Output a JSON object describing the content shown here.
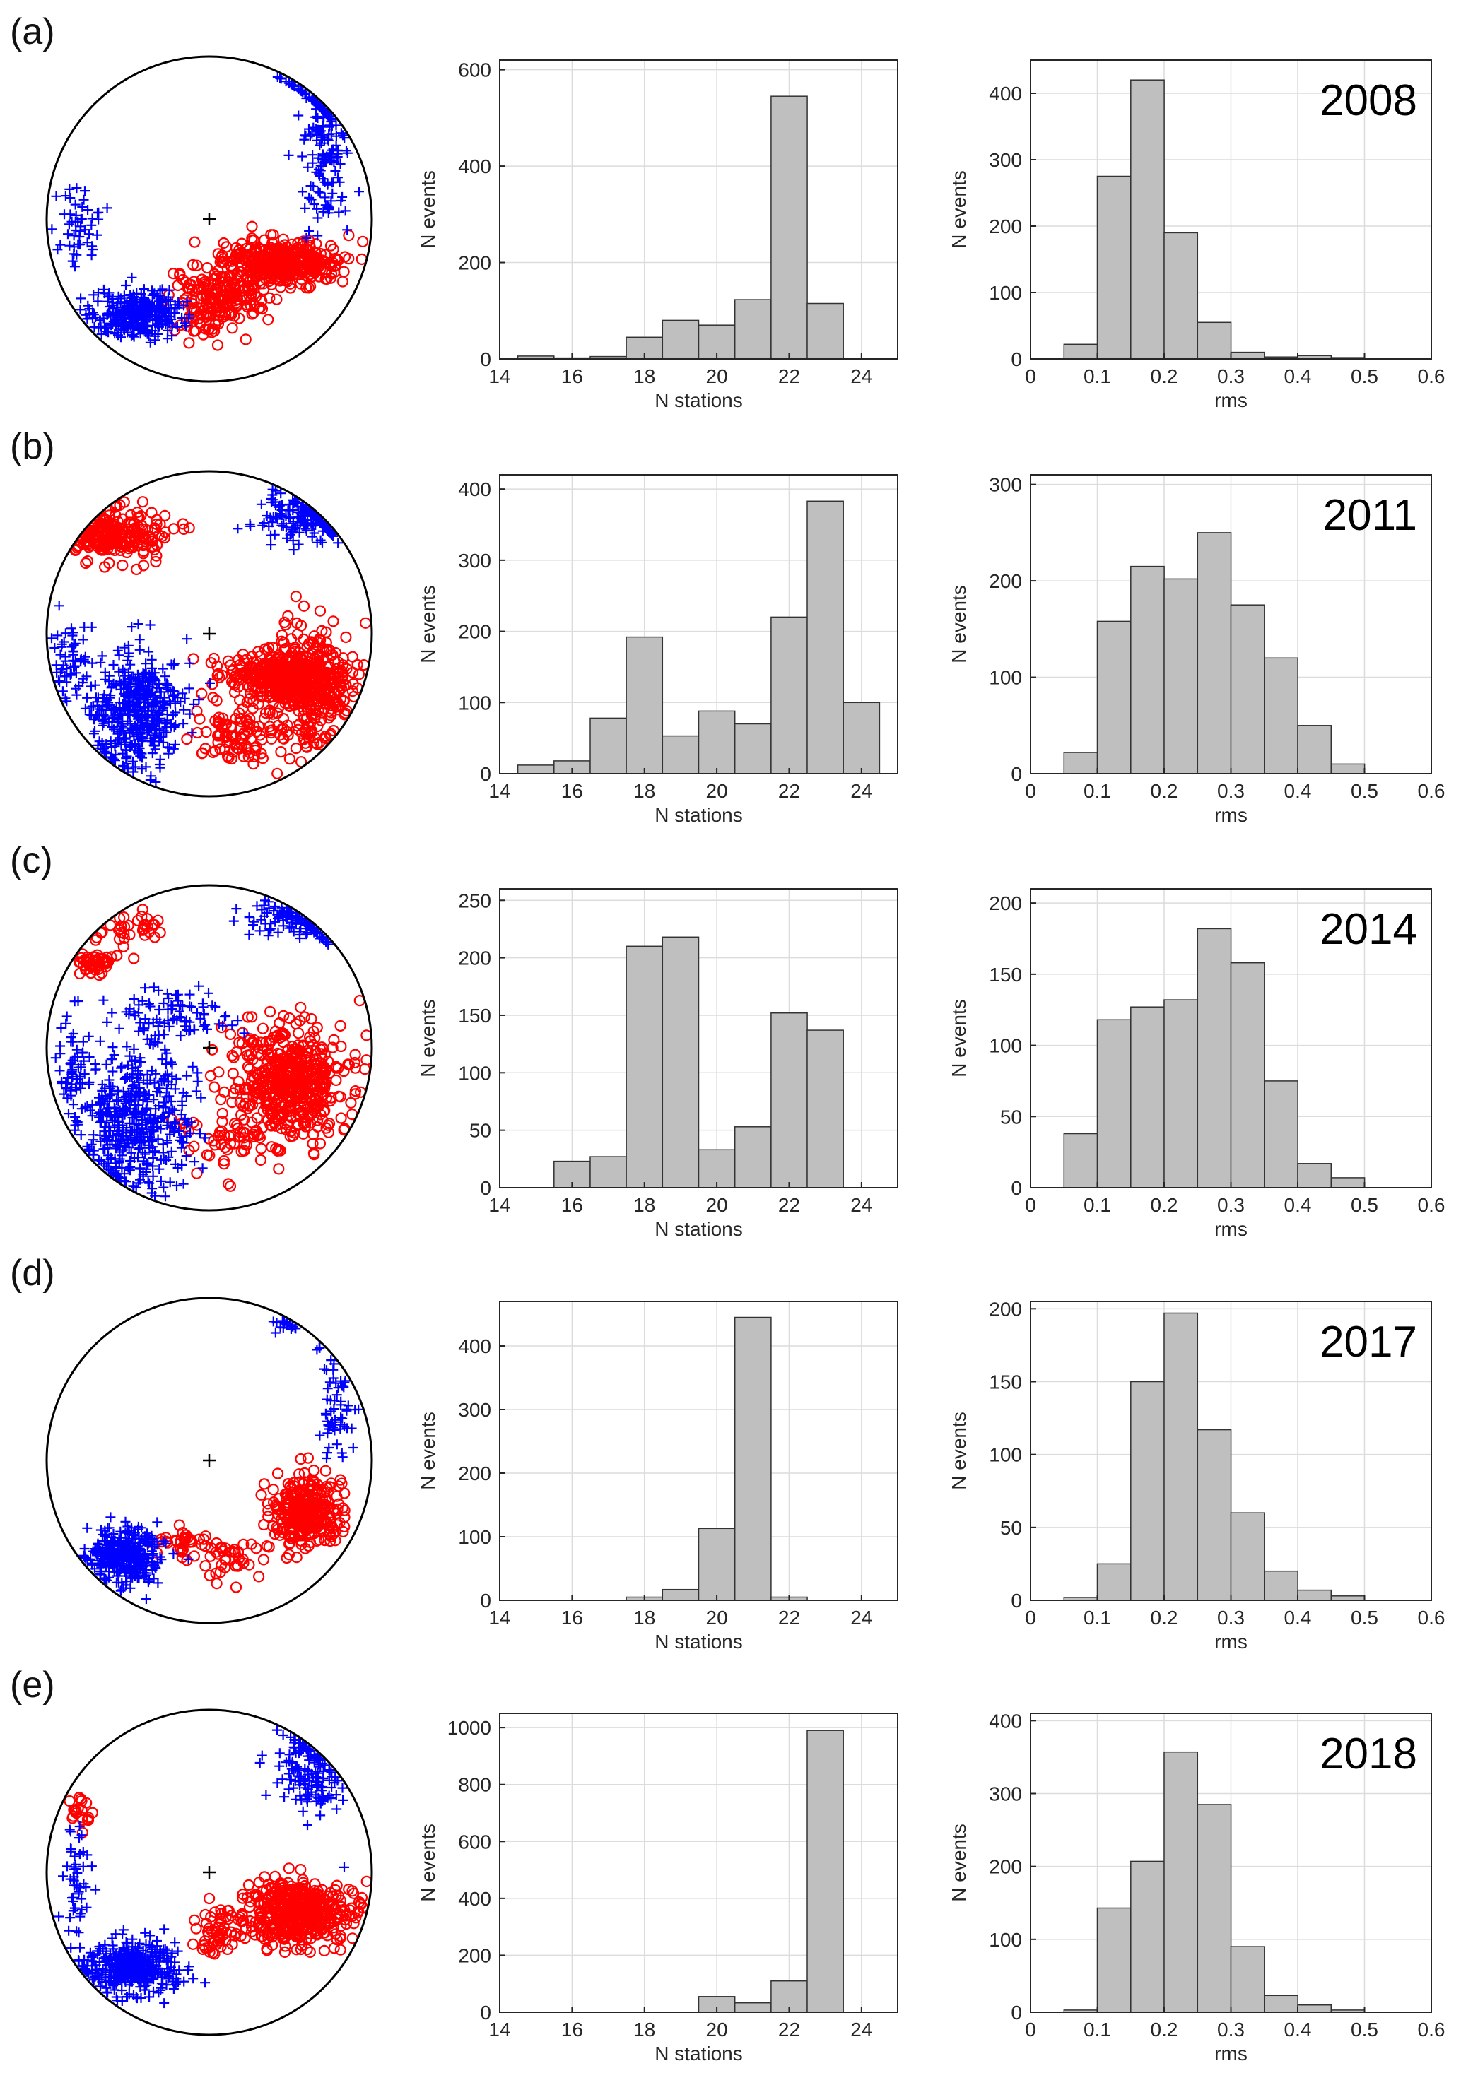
{
  "colors": {
    "bar_fill": "#bfbfbf",
    "bar_edge": "#333333",
    "grid": "#dcdcdc",
    "compression": "#ff0000",
    "dilatation": "#0000ff"
  },
  "rows": [
    {
      "panel": "(a)",
      "year": "2008",
      "stereonet": {
        "chart_data": {
          "type": "scatter",
          "series": [
            {
              "marker": "circle",
              "color": "#ff0000",
              "clusters": [
                {
                  "cx": 0.45,
                  "cy": 0.27,
                  "rx": 0.33,
                  "ry": 0.12,
                  "n": 380
                },
                {
                  "cx": 0.15,
                  "cy": 0.45,
                  "rx": 0.2,
                  "ry": 0.12,
                  "n": 90
                },
                {
                  "cx": -0.02,
                  "cy": 0.54,
                  "rx": 0.22,
                  "ry": 0.18,
                  "n": 110
                }
              ]
            },
            {
              "marker": "plus",
              "color": "#0000ff",
              "clusters": [
                {
                  "cx": -0.45,
                  "cy": 0.58,
                  "rx": 0.25,
                  "ry": 0.14,
                  "n": 320
                },
                {
                  "cx": 0.72,
                  "cy": -0.5,
                  "rx": 0.14,
                  "ry": 0.5,
                  "n": 170
                },
                {
                  "cx": -0.8,
                  "cy": 0.05,
                  "rx": 0.12,
                  "ry": 0.2,
                  "n": 50
                }
              ]
            }
          ]
        }
      },
      "hist_stations": {
        "chart_data": {
          "type": "bar",
          "bin_edges": [
            14.5,
            15.5,
            16.5,
            17.5,
            18.5,
            19.5,
            20.5,
            21.5,
            22.5,
            23.5,
            24.5
          ],
          "values": [
            6,
            2,
            5,
            45,
            80,
            70,
            123,
            545,
            115,
            0
          ],
          "xlim": [
            14,
            25
          ],
          "ylim": [
            0,
            620
          ],
          "xticks": [
            "14",
            "16",
            "18",
            "20",
            "22",
            "24"
          ],
          "yticks": [
            "0",
            "200",
            "400",
            "600"
          ],
          "xlabel": "N stations",
          "ylabel": "N events"
        }
      },
      "hist_rms": {
        "chart_data": {
          "type": "bar",
          "bin_edges": [
            0.0,
            0.05,
            0.1,
            0.15,
            0.2,
            0.25,
            0.3,
            0.35,
            0.4,
            0.45,
            0.5,
            0.55
          ],
          "values": [
            0,
            22,
            275,
            420,
            190,
            55,
            10,
            3,
            5,
            2,
            0
          ],
          "xlim": [
            0,
            0.6
          ],
          "ylim": [
            0,
            450
          ],
          "xticks": [
            "0",
            "0.1",
            "0.2",
            "0.3",
            "0.4",
            "0.5",
            "0.6"
          ],
          "yticks": [
            "0",
            "100",
            "200",
            "300",
            "400"
          ],
          "xlabel": "rms",
          "ylabel": "N events"
        }
      }
    },
    {
      "panel": "(b)",
      "year": "2011",
      "stereonet": {
        "chart_data": {
          "type": "scatter",
          "series": [
            {
              "marker": "circle",
              "color": "#ff0000",
              "clusters": [
                {
                  "cx": -0.58,
                  "cy": -0.62,
                  "rx": 0.28,
                  "ry": 0.14,
                  "n": 220
                },
                {
                  "cx": 0.45,
                  "cy": 0.27,
                  "rx": 0.3,
                  "ry": 0.14,
                  "n": 400
                },
                {
                  "cx": 0.65,
                  "cy": 0.35,
                  "rx": 0.2,
                  "ry": 0.35,
                  "n": 260
                },
                {
                  "cx": 0.2,
                  "cy": 0.62,
                  "rx": 0.25,
                  "ry": 0.16,
                  "n": 100
                }
              ]
            },
            {
              "marker": "plus",
              "color": "#0000ff",
              "clusters": [
                {
                  "cx": -0.45,
                  "cy": 0.48,
                  "rx": 0.25,
                  "ry": 0.32,
                  "n": 450
                },
                {
                  "cx": 0.58,
                  "cy": -0.72,
                  "rx": 0.25,
                  "ry": 0.15,
                  "n": 160
                },
                {
                  "cx": -0.85,
                  "cy": 0.15,
                  "rx": 0.1,
                  "ry": 0.25,
                  "n": 60
                }
              ]
            }
          ]
        }
      },
      "hist_stations": {
        "chart_data": {
          "type": "bar",
          "bin_edges": [
            14.5,
            15.5,
            16.5,
            17.5,
            18.5,
            19.5,
            20.5,
            21.5,
            22.5,
            23.5,
            24.5
          ],
          "values": [
            12,
            18,
            78,
            192,
            53,
            88,
            70,
            220,
            383,
            100
          ],
          "xlim": [
            14,
            25
          ],
          "ylim": [
            0,
            420
          ],
          "xticks": [
            "14",
            "16",
            "18",
            "20",
            "22",
            "24"
          ],
          "yticks": [
            "0",
            "100",
            "200",
            "300",
            "400"
          ],
          "xlabel": "N stations",
          "ylabel": "N events"
        }
      },
      "hist_rms": {
        "chart_data": {
          "type": "bar",
          "bin_edges": [
            0.0,
            0.05,
            0.1,
            0.15,
            0.2,
            0.25,
            0.3,
            0.35,
            0.4,
            0.45,
            0.5,
            0.55
          ],
          "values": [
            0,
            22,
            158,
            215,
            202,
            250,
            175,
            120,
            50,
            10,
            0
          ],
          "xlim": [
            0,
            0.6
          ],
          "ylim": [
            0,
            310
          ],
          "xticks": [
            "0",
            "0.1",
            "0.2",
            "0.3",
            "0.4",
            "0.5",
            "0.6"
          ],
          "yticks": [
            "0",
            "100",
            "200",
            "300"
          ],
          "xlabel": "rms",
          "ylabel": "N events"
        }
      }
    },
    {
      "panel": "(c)",
      "year": "2014",
      "stereonet": {
        "chart_data": {
          "type": "scatter",
          "series": [
            {
              "marker": "circle",
              "color": "#ff0000",
              "clusters": [
                {
                  "cx": 0.5,
                  "cy": 0.2,
                  "rx": 0.32,
                  "ry": 0.3,
                  "n": 500
                },
                {
                  "cx": -0.7,
                  "cy": -0.52,
                  "rx": 0.1,
                  "ry": 0.06,
                  "n": 50
                },
                {
                  "cx": -0.45,
                  "cy": -0.75,
                  "rx": 0.2,
                  "ry": 0.1,
                  "n": 35
                },
                {
                  "cx": 0.1,
                  "cy": 0.55,
                  "rx": 0.3,
                  "ry": 0.2,
                  "n": 60
                }
              ]
            },
            {
              "marker": "plus",
              "color": "#0000ff",
              "clusters": [
                {
                  "cx": -0.45,
                  "cy": 0.45,
                  "rx": 0.3,
                  "ry": 0.38,
                  "n": 450
                },
                {
                  "cx": 0.55,
                  "cy": -0.8,
                  "rx": 0.3,
                  "ry": 0.12,
                  "n": 120
                },
                {
                  "cx": -0.25,
                  "cy": -0.2,
                  "rx": 0.35,
                  "ry": 0.15,
                  "n": 90
                },
                {
                  "cx": -0.85,
                  "cy": 0.1,
                  "rx": 0.1,
                  "ry": 0.3,
                  "n": 60
                }
              ]
            }
          ]
        }
      },
      "hist_stations": {
        "chart_data": {
          "type": "bar",
          "bin_edges": [
            14.5,
            15.5,
            16.5,
            17.5,
            18.5,
            19.5,
            20.5,
            21.5,
            22.5,
            23.5,
            24.5
          ],
          "values": [
            0,
            23,
            27,
            210,
            218,
            33,
            53,
            152,
            137,
            0
          ],
          "xlim": [
            14,
            25
          ],
          "ylim": [
            0,
            260
          ],
          "xticks": [
            "14",
            "16",
            "18",
            "20",
            "22",
            "24"
          ],
          "yticks": [
            "0",
            "50",
            "100",
            "150",
            "200",
            "250"
          ],
          "xlabel": "N stations",
          "ylabel": "N events"
        }
      },
      "hist_rms": {
        "chart_data": {
          "type": "bar",
          "bin_edges": [
            0.0,
            0.05,
            0.1,
            0.15,
            0.2,
            0.25,
            0.3,
            0.35,
            0.4,
            0.45,
            0.5,
            0.55
          ],
          "values": [
            0,
            38,
            118,
            127,
            132,
            182,
            158,
            75,
            17,
            7,
            0
          ],
          "xlim": [
            0,
            0.6
          ],
          "ylim": [
            0,
            210
          ],
          "xticks": [
            "0",
            "0.1",
            "0.2",
            "0.3",
            "0.4",
            "0.5",
            "0.6"
          ],
          "yticks": [
            "0",
            "50",
            "100",
            "150",
            "200"
          ],
          "xlabel": "rms",
          "ylabel": "N events"
        }
      }
    },
    {
      "panel": "(d)",
      "year": "2017",
      "stereonet": {
        "chart_data": {
          "type": "scatter",
          "series": [
            {
              "marker": "circle",
              "color": "#ff0000",
              "clusters": [
                {
                  "cx": 0.6,
                  "cy": 0.32,
                  "rx": 0.2,
                  "ry": 0.18,
                  "n": 300
                },
                {
                  "cx": 0.12,
                  "cy": 0.6,
                  "rx": 0.25,
                  "ry": 0.12,
                  "n": 45
                },
                {
                  "cx": -0.15,
                  "cy": 0.5,
                  "rx": 0.15,
                  "ry": 0.08,
                  "n": 30
                }
              ]
            },
            {
              "marker": "plus",
              "color": "#0000ff",
              "clusters": [
                {
                  "cx": -0.52,
                  "cy": 0.58,
                  "rx": 0.2,
                  "ry": 0.15,
                  "n": 350
                },
                {
                  "cx": 0.78,
                  "cy": -0.35,
                  "rx": 0.1,
                  "ry": 0.35,
                  "n": 60
                },
                {
                  "cx": 0.45,
                  "cy": -0.85,
                  "rx": 0.1,
                  "ry": 0.05,
                  "n": 20
                }
              ]
            }
          ]
        }
      },
      "hist_stations": {
        "chart_data": {
          "type": "bar",
          "bin_edges": [
            14.5,
            15.5,
            16.5,
            17.5,
            18.5,
            19.5,
            20.5,
            21.5,
            22.5,
            23.5,
            24.5
          ],
          "values": [
            0,
            0,
            0,
            5,
            17,
            113,
            445,
            5,
            0,
            0
          ],
          "xlim": [
            14,
            25
          ],
          "ylim": [
            0,
            470
          ],
          "xticks": [
            "14",
            "16",
            "18",
            "20",
            "22",
            "24"
          ],
          "yticks": [
            "0",
            "100",
            "200",
            "300",
            "400"
          ],
          "xlabel": "N stations",
          "ylabel": "N events"
        }
      },
      "hist_rms": {
        "chart_data": {
          "type": "bar",
          "bin_edges": [
            0.0,
            0.05,
            0.1,
            0.15,
            0.2,
            0.25,
            0.3,
            0.35,
            0.4,
            0.45,
            0.5,
            0.55
          ],
          "values": [
            0,
            2,
            25,
            150,
            197,
            117,
            60,
            20,
            7,
            3,
            0
          ],
          "xlim": [
            0,
            0.6
          ],
          "ylim": [
            0,
            205
          ],
          "xticks": [
            "0",
            "0.1",
            "0.2",
            "0.3",
            "0.4",
            "0.5",
            "0.6"
          ],
          "yticks": [
            "0",
            "50",
            "100",
            "150",
            "200"
          ],
          "xlabel": "rms",
          "ylabel": "N events"
        }
      }
    },
    {
      "panel": "(e)",
      "year": "2018",
      "stereonet": {
        "chart_data": {
          "type": "scatter",
          "series": [
            {
              "marker": "circle",
              "color": "#ff0000",
              "clusters": [
                {
                  "cx": 0.55,
                  "cy": 0.25,
                  "rx": 0.32,
                  "ry": 0.17,
                  "n": 450
                },
                {
                  "cx": 0.05,
                  "cy": 0.4,
                  "rx": 0.1,
                  "ry": 0.15,
                  "n": 50
                },
                {
                  "cx": -0.8,
                  "cy": -0.35,
                  "rx": 0.06,
                  "ry": 0.12,
                  "n": 20
                }
              ]
            },
            {
              "marker": "plus",
              "color": "#0000ff",
              "clusters": [
                {
                  "cx": -0.48,
                  "cy": 0.58,
                  "rx": 0.25,
                  "ry": 0.15,
                  "n": 400
                },
                {
                  "cx": 0.62,
                  "cy": -0.62,
                  "rx": 0.2,
                  "ry": 0.25,
                  "n": 150
                },
                {
                  "cx": -0.82,
                  "cy": 0.05,
                  "rx": 0.08,
                  "ry": 0.3,
                  "n": 50
                }
              ]
            }
          ]
        }
      },
      "hist_stations": {
        "chart_data": {
          "type": "bar",
          "bin_edges": [
            14.5,
            15.5,
            16.5,
            17.5,
            18.5,
            19.5,
            20.5,
            21.5,
            22.5,
            23.5,
            24.5
          ],
          "values": [
            0,
            0,
            0,
            0,
            0,
            55,
            33,
            110,
            990,
            0
          ],
          "xlim": [
            14,
            25
          ],
          "ylim": [
            0,
            1050
          ],
          "xticks": [
            "14",
            "16",
            "18",
            "20",
            "22",
            "24"
          ],
          "yticks": [
            "0",
            "200",
            "400",
            "600",
            "800",
            "1000"
          ],
          "xlabel": "N stations",
          "ylabel": "N events"
        }
      },
      "hist_rms": {
        "chart_data": {
          "type": "bar",
          "bin_edges": [
            0.0,
            0.05,
            0.1,
            0.15,
            0.2,
            0.25,
            0.3,
            0.35,
            0.4,
            0.45,
            0.5,
            0.55
          ],
          "values": [
            0,
            3,
            143,
            207,
            357,
            285,
            90,
            23,
            10,
            3,
            0
          ],
          "xlim": [
            0,
            0.6
          ],
          "ylim": [
            0,
            410
          ],
          "xticks": [
            "0",
            "0.1",
            "0.2",
            "0.3",
            "0.4",
            "0.5",
            "0.6"
          ],
          "yticks": [
            "0",
            "100",
            "200",
            "300",
            "400"
          ],
          "xlabel": "rms",
          "ylabel": "N events"
        }
      }
    }
  ]
}
